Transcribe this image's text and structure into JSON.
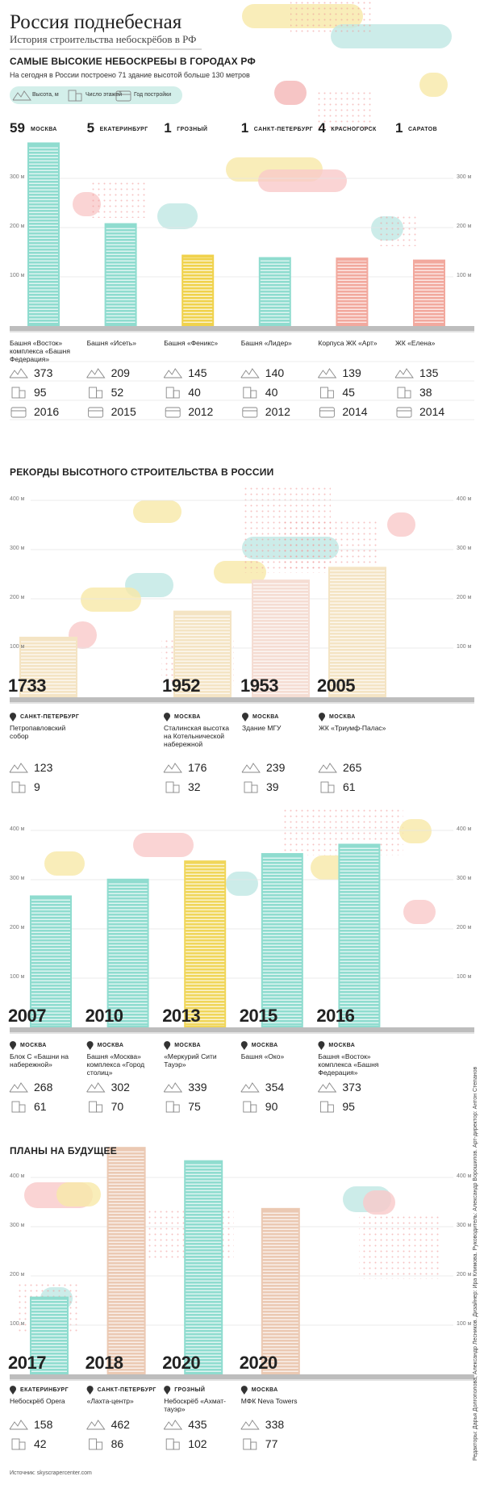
{
  "header": {
    "title": "Россия поднебесная",
    "subtitle": "История строительства небоскрёбов в РФ"
  },
  "sections": [
    {
      "heading": "САМЫЕ ВЫСОКИЕ НЕБОСКРЕБЫ В ГОРОДАХ РФ",
      "note": "На сегодня в России построено 71 здание высотой больше 130 метров",
      "legend": [
        "Высота, м",
        "Число этажей",
        "Год постройки"
      ],
      "cities": [
        {
          "count": 59,
          "name": "МОСКВА"
        },
        {
          "count": 5,
          "name": "ЕКАТЕРИНБУРГ"
        },
        {
          "count": 1,
          "name": "ГРОЗНЫЙ"
        },
        {
          "count": 1,
          "name": "САНКТ-ПЕТЕРБУРГ"
        },
        {
          "count": 4,
          "name": "КРАСНОГОРСК"
        },
        {
          "count": 1,
          "name": "САРАТОВ"
        }
      ],
      "yticks": [
        {
          "value": 100,
          "label": "100 м"
        },
        {
          "value": 200,
          "label": "200 м"
        },
        {
          "value": 300,
          "label": "300 м"
        }
      ],
      "buildings": [
        {
          "name": "Башня «Восток» комплекса «Башня Федерация»",
          "height": 373,
          "floors": 95,
          "year": 2016,
          "color": "#8fdccf"
        },
        {
          "name": "Башня «Исеть»",
          "height": 209,
          "floors": 52,
          "year": 2015,
          "color": "#8fdccf"
        },
        {
          "name": "Башня «Феникс»",
          "height": 145,
          "floors": 40,
          "year": 2012,
          "color": "#f0d24c"
        },
        {
          "name": "Башня «Лидер»",
          "height": 140,
          "floors": 40,
          "year": 2012,
          "color": "#8fdccf"
        },
        {
          "name": "Корпуса ЖК «Арт»",
          "height": 139,
          "floors": 45,
          "year": 2014,
          "color": "#f2a99e"
        },
        {
          "name": "ЖК «Елена»",
          "height": 135,
          "floors": 38,
          "year": 2014,
          "color": "#f2a99e"
        }
      ]
    },
    {
      "heading": "РЕКОРДЫ ВЫСОТНОГО СТРОИТЕЛЬСТВА В РОССИИ",
      "yticks": [
        {
          "value": 100,
          "label": "100 м"
        },
        {
          "value": 200,
          "label": "200 м"
        },
        {
          "value": 300,
          "label": "300 м"
        },
        {
          "value": 400,
          "label": "400 м"
        }
      ],
      "buildings": [
        {
          "year": 1733,
          "city": "САНКТ-ПЕТЕРБУРГ",
          "name": "Петропавловский собор",
          "height": 123,
          "floors": 9,
          "color": "#f4e4c4"
        },
        {
          "year": 1952,
          "city": "МОСКВА",
          "name": "Сталинская высотка на Котельнической набережной",
          "height": 176,
          "floors": 32,
          "color": "#f4e4c4"
        },
        {
          "year": 1953,
          "city": "МОСКВА",
          "name": "Здание МГУ",
          "height": 239,
          "floors": 39,
          "color": "#f5ddd3"
        },
        {
          "year": 2005,
          "city": "МОСКВА",
          "name": "ЖК «Триумф-Палас»",
          "height": 265,
          "floors": 61,
          "color": "#f4e4c4"
        }
      ]
    },
    {
      "yticks": [
        {
          "value": 100,
          "label": "100 м"
        },
        {
          "value": 200,
          "label": "200 м"
        },
        {
          "value": 300,
          "label": "300 м"
        },
        {
          "value": 400,
          "label": "400 м"
        }
      ],
      "buildings": [
        {
          "year": 2007,
          "city": "МОСКВА",
          "name": "Блок С «Башни на набережной»",
          "height": 268,
          "floors": 61,
          "color": "#8fdccf"
        },
        {
          "year": 2010,
          "city": "МОСКВА",
          "name": "Башня «Москва» комплекса «Город столиц»",
          "height": 302,
          "floors": 70,
          "color": "#8fdccf"
        },
        {
          "year": 2013,
          "city": "МОСКВА",
          "name": "«Меркурий Сити Тауэр»",
          "height": 339,
          "floors": 75,
          "color": "#f0d65a"
        },
        {
          "year": 2015,
          "city": "МОСКВА",
          "name": "Башня «Око»",
          "height": 354,
          "floors": 90,
          "color": "#8fdccf"
        },
        {
          "year": 2016,
          "city": "МОСКВА",
          "name": "Башня «Восток» комплекса «Башня Федерация»",
          "height": 373,
          "floors": 95,
          "color": "#8fdccf"
        }
      ]
    },
    {
      "heading": "ПЛАНЫ НА БУДУЩЕЕ",
      "yticks": [
        {
          "value": 100,
          "label": "100 м"
        },
        {
          "value": 200,
          "label": "200 м"
        },
        {
          "value": 300,
          "label": "300 м"
        },
        {
          "value": 400,
          "label": "400 м"
        }
      ],
      "buildings": [
        {
          "year": 2017,
          "city": "ЕКАТЕРИНБУРГ",
          "name": "Небоскрёб Opera",
          "height": 158,
          "floors": 42,
          "color": "#8fdccf"
        },
        {
          "year": 2018,
          "city": "САНКТ-ПЕТЕРБУРГ",
          "name": "«Лахта-центр»",
          "height": 462,
          "floors": 86,
          "color": "#ebc9b3"
        },
        {
          "year": 2020,
          "city": "ГРОЗНЫЙ",
          "name": "Небоскрёб «Ахмат-тауэр»",
          "height": 435,
          "floors": 102,
          "color": "#8fdccf"
        },
        {
          "year": 2020,
          "city": "МОСКВА",
          "name": "МФК Neva Towers",
          "height": 338,
          "floors": 77,
          "color": "#ebc9b3"
        }
      ]
    }
  ],
  "source": "Источник: skyscrapercenter.com",
  "credits": "Редакторы: Дарья Долгополова, Александр Лесников. Дизайнер: Ира Климова. Руководитель: Александр Ворошилов. Арт-директор: Антон Степанов"
}
